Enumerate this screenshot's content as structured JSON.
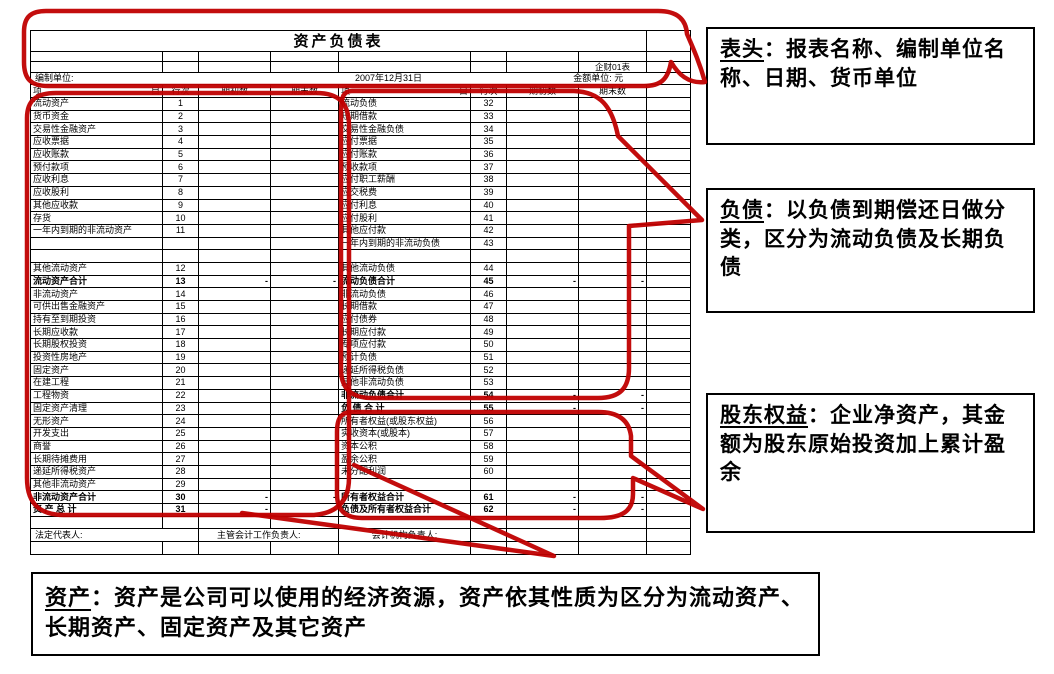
{
  "annotation_color": "#c00000",
  "sheet": {
    "title": "资产负债表",
    "form_no": "企财01表",
    "prep_unit_label": "编制单位:",
    "date": "2007年12月31日",
    "currency_unit": "金额单位: 元",
    "columns": {
      "item_left": "项",
      "item_right": "目",
      "line_no": "行次",
      "begin": "期初数",
      "end": "期末数"
    },
    "footer": {
      "legal_rep": "法定代表人:",
      "chief_acct": "主管会计工作负责人:",
      "acct_head": "会计机构负责人:"
    },
    "rows": [
      {
        "l": [
          "流动资产",
          "1",
          "",
          "",
          "sec"
        ],
        "r": [
          "流动负债",
          "32",
          "",
          "",
          "sec"
        ]
      },
      {
        "l": [
          "货币资金",
          "2",
          "",
          "",
          "item"
        ],
        "r": [
          "短期借款",
          "33",
          "",
          "",
          "item"
        ]
      },
      {
        "l": [
          "交易性金融资产",
          "3",
          "",
          "",
          "item"
        ],
        "r": [
          "交易性金融负债",
          "34",
          "",
          "",
          "item"
        ]
      },
      {
        "l": [
          "应收票据",
          "4",
          "",
          "",
          "item"
        ],
        "r": [
          "应付票据",
          "35",
          "",
          "",
          "item"
        ]
      },
      {
        "l": [
          "应收账款",
          "5",
          "",
          "",
          "item"
        ],
        "r": [
          "应付账款",
          "36",
          "",
          "",
          "item"
        ]
      },
      {
        "l": [
          "预付款项",
          "6",
          "",
          "",
          "item"
        ],
        "r": [
          "预收款项",
          "37",
          "",
          "",
          "item"
        ]
      },
      {
        "l": [
          "应收利息",
          "7",
          "",
          "",
          "item"
        ],
        "r": [
          "应付职工薪酬",
          "38",
          "",
          "",
          "item"
        ]
      },
      {
        "l": [
          "应收股利",
          "8",
          "",
          "",
          "item"
        ],
        "r": [
          "应交税费",
          "39",
          "",
          "",
          "item"
        ]
      },
      {
        "l": [
          "其他应收款",
          "9",
          "",
          "",
          "item"
        ],
        "r": [
          "应付利息",
          "40",
          "",
          "",
          "item"
        ]
      },
      {
        "l": [
          "存货",
          "10",
          "",
          "",
          "item"
        ],
        "r": [
          "应付股利",
          "41",
          "",
          "",
          "item"
        ]
      },
      {
        "l": [
          "一年内到期的非流动资产",
          "11",
          "",
          "",
          "sm"
        ],
        "r": [
          "其他应付款",
          "42",
          "",
          "",
          "item"
        ]
      },
      {
        "l": [
          "",
          "",
          "",
          "",
          ""
        ],
        "r": [
          "一年内到期的非流动负债",
          "43",
          "",
          "",
          "sm"
        ]
      },
      {
        "l": [
          "",
          "",
          "",
          "",
          ""
        ],
        "r": [
          "",
          "",
          "",
          "",
          ""
        ]
      },
      {
        "l": [
          "其他流动资产",
          "12",
          "",
          "",
          "item"
        ],
        "r": [
          "其他流动负债",
          "44",
          "",
          "",
          "item"
        ]
      },
      {
        "l": [
          "流动资产合计",
          "13",
          "-",
          "-",
          "tot"
        ],
        "r": [
          "流动负债合计",
          "45",
          "-",
          "-",
          "tot"
        ]
      },
      {
        "l": [
          "非流动资产",
          "14",
          "",
          "",
          "sec"
        ],
        "r": [
          "非流动负债",
          "46",
          "",
          "",
          "sec"
        ]
      },
      {
        "l": [
          "可供出售金融资产",
          "15",
          "",
          "",
          "item"
        ],
        "r": [
          "长期借款",
          "47",
          "",
          "",
          "item"
        ]
      },
      {
        "l": [
          "持有至到期投资",
          "16",
          "",
          "",
          "item"
        ],
        "r": [
          "应付债券",
          "48",
          "",
          "",
          "item"
        ]
      },
      {
        "l": [
          "长期应收款",
          "17",
          "",
          "",
          "item"
        ],
        "r": [
          "长期应付款",
          "49",
          "",
          "",
          "item"
        ]
      },
      {
        "l": [
          "长期股权投资",
          "18",
          "",
          "",
          "item"
        ],
        "r": [
          "专项应付款",
          "50",
          "",
          "",
          "item"
        ]
      },
      {
        "l": [
          "投资性房地产",
          "19",
          "",
          "",
          "item"
        ],
        "r": [
          "预计负债",
          "51",
          "",
          "",
          "item"
        ]
      },
      {
        "l": [
          "固定资产",
          "20",
          "",
          "",
          "item"
        ],
        "r": [
          "递延所得税负债",
          "52",
          "",
          "",
          "item"
        ]
      },
      {
        "l": [
          "在建工程",
          "21",
          "",
          "",
          "item"
        ],
        "r": [
          "其他非流动负债",
          "53",
          "",
          "",
          "item"
        ]
      },
      {
        "l": [
          "工程物资",
          "22",
          "",
          "",
          "item"
        ],
        "r": [
          "非流动负债合计",
          "54",
          "-",
          "-",
          "tot"
        ]
      },
      {
        "l": [
          "固定资产清理",
          "23",
          "",
          "",
          "item"
        ],
        "r": [
          "负 债 合 计",
          "55",
          "-",
          "-",
          "tot"
        ]
      },
      {
        "l": [
          "无形资产",
          "24",
          "",
          "",
          "item"
        ],
        "r": [
          "所有者权益(或股东权益)",
          "56",
          "",
          "",
          "sec"
        ]
      },
      {
        "l": [
          "开发支出",
          "25",
          "",
          "",
          "item"
        ],
        "r": [
          "实收资本(或股本)",
          "57",
          "",
          "",
          "item"
        ]
      },
      {
        "l": [
          "商誉",
          "26",
          "",
          "",
          "item"
        ],
        "r": [
          "资本公积",
          "58",
          "",
          "",
          "item"
        ]
      },
      {
        "l": [
          "长期待摊费用",
          "27",
          "",
          "",
          "item"
        ],
        "r": [
          "盈余公积",
          "59",
          "",
          "",
          "item"
        ]
      },
      {
        "l": [
          "递延所得税资产",
          "28",
          "",
          "",
          "item"
        ],
        "r": [
          "未分配利润",
          "60",
          "",
          "",
          "item"
        ]
      },
      {
        "l": [
          "其他非流动资产",
          "29",
          "",
          "",
          "item"
        ],
        "r": [
          "",
          "",
          "",
          "",
          ""
        ]
      },
      {
        "l": [
          "非流动资产合计",
          "30",
          "-",
          "-",
          "tot"
        ],
        "r": [
          "所有者权益合计",
          "61",
          "-",
          "-",
          "tot"
        ]
      },
      {
        "l": [
          "资 产 总 计",
          "31",
          "-",
          "-",
          "tot"
        ],
        "r": [
          "负债及所有者权益合计",
          "62",
          "-",
          "-",
          "totl"
        ]
      },
      {
        "l": [
          "",
          "",
          "",
          "",
          ""
        ],
        "r": [
          "",
          "",
          "",
          "",
          ""
        ]
      },
      {
        "sig": true
      },
      {
        "l": [
          "",
          "",
          "",
          "",
          ""
        ],
        "r": [
          "",
          "",
          "",
          "",
          ""
        ]
      }
    ]
  },
  "callouts": [
    {
      "term": "表头",
      "body": "：报表名称、编制单位名称、日期、货币单位"
    },
    {
      "term": "负债",
      "body": "：以负债到期偿还日做分类，区分为流动负债及长期负债"
    },
    {
      "term": "股东权益",
      "body": "：企业净资产，其金额为股东原始投资加上累计盈余"
    },
    {
      "term": "资产",
      "body": "：资产是公司可以使用的经济资源，资产依其性质为区分为流动资产、长期资产、固定资产及其它资产"
    }
  ]
}
